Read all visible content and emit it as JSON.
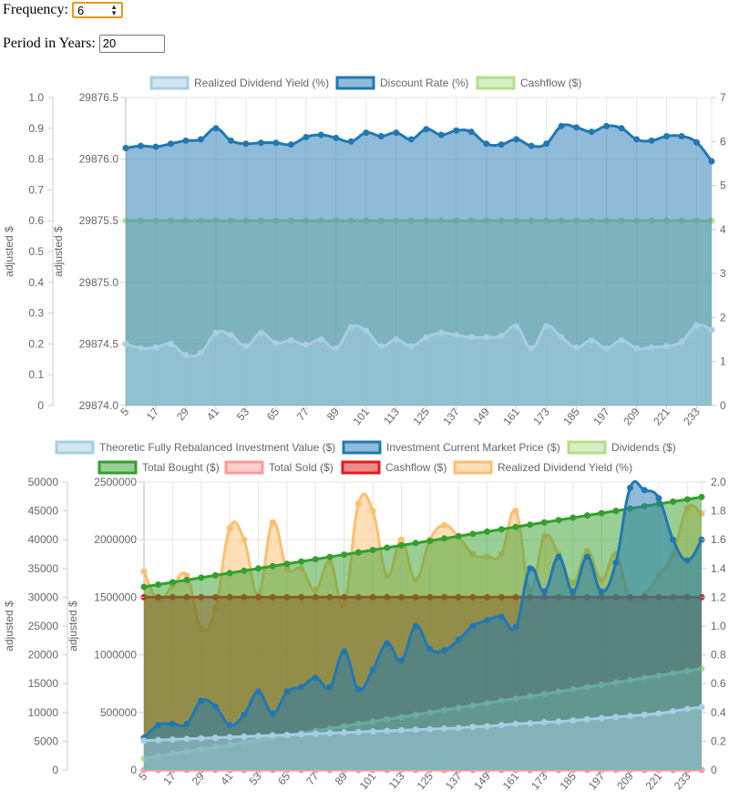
{
  "form": {
    "frequency_label": "Frequency:",
    "frequency_value": "6",
    "period_label": "Period in Years:",
    "period_value": "20"
  },
  "colors": {
    "light_blue": "#a6cee3",
    "dark_blue": "#1f78b4",
    "light_green": "#b2df8a",
    "green": "#33a02c",
    "pink": "#fb9a99",
    "red": "#e31a1c",
    "orange": "#fdbf6f"
  },
  "chart_data": [
    {
      "type": "line",
      "x": [
        5,
        11,
        17,
        23,
        29,
        35,
        41,
        47,
        53,
        59,
        65,
        71,
        77,
        83,
        89,
        95,
        101,
        107,
        113,
        119,
        125,
        131,
        137,
        143,
        149,
        155,
        161,
        167,
        173,
        179,
        185,
        191,
        197,
        203,
        209,
        215,
        221,
        227,
        233,
        239
      ],
      "tick_labels": [
        "5",
        "17",
        "29",
        "41",
        "53",
        "65",
        "77",
        "89",
        "101",
        "113",
        "125",
        "137",
        "149",
        "161",
        "173",
        "185",
        "197",
        "209",
        "221",
        "233"
      ],
      "legend": [
        "Realized Dividend Yield (%)",
        "Discount Rate (%)",
        "Cashflow ($)"
      ],
      "axes": {
        "y_outer": {
          "label": "adjusted $",
          "ticks": [
            "0",
            "0.1",
            "0.2",
            "0.3",
            "0.4",
            "0.5",
            "0.6",
            "0.7",
            "0.8",
            "0.9",
            "1.0"
          ],
          "min": 0,
          "max": 1
        },
        "y_left": {
          "label": "adjusted $",
          "ticks": [
            "29874.0",
            "29874.5",
            "29875.0",
            "29875.5",
            "29876.0",
            "29876.5"
          ],
          "min": 29874.0,
          "max": 29876.5
        },
        "y_right": {
          "ticks": [
            "0",
            "1",
            "2",
            "3",
            "4",
            "5",
            "6",
            "7"
          ],
          "min": 0,
          "max": 7
        }
      },
      "series": [
        {
          "name": "Realized Dividend Yield (%)",
          "axis": "y_right",
          "color": "light_blue",
          "values": [
            1.4,
            1.3,
            1.32,
            1.4,
            1.15,
            1.2,
            1.65,
            1.6,
            1.35,
            1.65,
            1.42,
            1.48,
            1.38,
            1.5,
            1.3,
            1.78,
            1.7,
            1.35,
            1.5,
            1.35,
            1.55,
            1.65,
            1.6,
            1.55,
            1.55,
            1.58,
            1.8,
            1.3,
            1.8,
            1.55,
            1.32,
            1.48,
            1.3,
            1.48,
            1.3,
            1.32,
            1.35,
            1.45,
            1.82,
            1.72
          ]
        },
        {
          "name": "Discount Rate (%)",
          "axis": "y_right",
          "color": "dark_blue",
          "values": [
            5.85,
            5.9,
            5.88,
            5.95,
            6.02,
            6.05,
            6.3,
            6.02,
            5.95,
            5.97,
            5.97,
            5.93,
            6.1,
            6.15,
            6.08,
            6.0,
            6.2,
            6.12,
            6.2,
            6.05,
            6.28,
            6.15,
            6.25,
            6.22,
            5.95,
            5.93,
            6.05,
            5.9,
            5.95,
            6.35,
            6.32,
            6.22,
            6.35,
            6.3,
            6.05,
            6.02,
            6.12,
            6.12,
            5.98,
            5.55
          ]
        },
        {
          "name": "Cashflow ($)",
          "axis": "y_left",
          "color": "light_green",
          "values": [
            29875.5,
            29875.5,
            29875.5,
            29875.5,
            29875.5,
            29875.5,
            29875.5,
            29875.5,
            29875.5,
            29875.5,
            29875.5,
            29875.5,
            29875.5,
            29875.5,
            29875.5,
            29875.5,
            29875.5,
            29875.5,
            29875.5,
            29875.5,
            29875.5,
            29875.5,
            29875.5,
            29875.5,
            29875.5,
            29875.5,
            29875.5,
            29875.5,
            29875.5,
            29875.5,
            29875.5,
            29875.5,
            29875.5,
            29875.5,
            29875.5,
            29875.5,
            29875.5,
            29875.5,
            29875.5,
            29875.5
          ]
        }
      ]
    },
    {
      "type": "line",
      "x": [
        5,
        11,
        17,
        23,
        29,
        35,
        41,
        47,
        53,
        59,
        65,
        71,
        77,
        83,
        89,
        95,
        101,
        107,
        113,
        119,
        125,
        131,
        137,
        143,
        149,
        155,
        161,
        167,
        173,
        179,
        185,
        191,
        197,
        203,
        209,
        215,
        221,
        227,
        233,
        239
      ],
      "tick_labels": [
        "5",
        "17",
        "29",
        "41",
        "53",
        "65",
        "77",
        "89",
        "101",
        "113",
        "125",
        "137",
        "149",
        "161",
        "173",
        "185",
        "197",
        "209",
        "221",
        "233"
      ],
      "legend": [
        "Theoretic Fully Rebalanced Investment Value ($)",
        "Investment Current Market Price ($)",
        "Dividends ($)",
        "Total Bought ($)",
        "Total Sold ($)",
        "Cashflow ($)",
        "Realized Dividend Yield (%)"
      ],
      "axes": {
        "y_outer": {
          "label": "adjusted $",
          "ticks": [
            "0",
            "5000",
            "10000",
            "15000",
            "20000",
            "25000",
            "30000",
            "35000",
            "40000",
            "45000",
            "50000"
          ],
          "min": 0,
          "max": 50000
        },
        "y_left": {
          "label": "adjusted $",
          "ticks": [
            "0",
            "500000",
            "1000000",
            "1500000",
            "2000000",
            "2500000"
          ],
          "min": 0,
          "max": 2500000
        },
        "y_right": {
          "ticks": [
            "0",
            "0.2",
            "0.4",
            "0.6",
            "0.8",
            "1.0",
            "1.2",
            "1.4",
            "1.6",
            "1.8",
            "2.0"
          ],
          "min": 0,
          "max": 2
        }
      },
      "series": [
        {
          "name": "Theoretic Fully Rebalanced Investment Value ($)",
          "axis": "y_left",
          "color": "light_blue",
          "values": [
            255000,
            260000,
            265000,
            270000,
            275000,
            280000,
            285000,
            290000,
            295000,
            300000,
            305000,
            310000,
            315000,
            320000,
            325000,
            330000,
            335000,
            340000,
            345000,
            350000,
            355000,
            360000,
            365000,
            375000,
            380000,
            390000,
            400000,
            405000,
            415000,
            420000,
            430000,
            440000,
            450000,
            460000,
            470000,
            480000,
            490000,
            510000,
            530000,
            545000
          ]
        },
        {
          "name": "Investment Current Market Price ($)",
          "axis": "y_left",
          "color": "dark_blue",
          "values": [
            280000,
            390000,
            400000,
            400000,
            600000,
            550000,
            390000,
            480000,
            680000,
            490000,
            680000,
            720000,
            800000,
            720000,
            1030000,
            700000,
            870000,
            1100000,
            950000,
            1250000,
            1050000,
            1040000,
            1130000,
            1250000,
            1300000,
            1330000,
            1240000,
            1750000,
            1550000,
            1850000,
            1550000,
            1850000,
            1550000,
            1800000,
            2450000,
            2430000,
            2360000,
            2000000,
            1820000,
            2000000
          ]
        },
        {
          "name": "Dividends ($)",
          "axis": "y_left",
          "color": "light_green",
          "values": [
            100000,
            120000,
            140000,
            160000,
            180000,
            200000,
            220000,
            240000,
            260000,
            280000,
            300000,
            320000,
            340000,
            360000,
            380000,
            400000,
            420000,
            440000,
            460000,
            480000,
            500000,
            520000,
            540000,
            560000,
            580000,
            600000,
            620000,
            640000,
            660000,
            680000,
            700000,
            720000,
            740000,
            760000,
            780000,
            800000,
            820000,
            840000,
            860000,
            880000
          ]
        },
        {
          "name": "Total Bought ($)",
          "axis": "y_left",
          "color": "green",
          "values": [
            1590000,
            1610000,
            1630000,
            1650000,
            1670000,
            1690000,
            1710000,
            1730000,
            1750000,
            1770000,
            1790000,
            1810000,
            1830000,
            1850000,
            1870000,
            1890000,
            1910000,
            1930000,
            1950000,
            1970000,
            1990000,
            2010000,
            2030000,
            2050000,
            2070000,
            2090000,
            2110000,
            2130000,
            2150000,
            2170000,
            2190000,
            2210000,
            2230000,
            2250000,
            2270000,
            2290000,
            2310000,
            2330000,
            2350000,
            2370000
          ]
        },
        {
          "name": "Total Sold ($)",
          "axis": "y_left",
          "color": "pink",
          "values": [
            0,
            0,
            0,
            0,
            0,
            0,
            0,
            0,
            0,
            0,
            0,
            0,
            0,
            0,
            0,
            0,
            0,
            0,
            0,
            0,
            0,
            0,
            0,
            0,
            0,
            0,
            0,
            0,
            0,
            0,
            0,
            0,
            0,
            0,
            0,
            0,
            0,
            0,
            0,
            0
          ]
        },
        {
          "name": "Cashflow ($)",
          "axis": "y_left",
          "color": "red",
          "values": [
            1500000,
            1500000,
            1500000,
            1500000,
            1500000,
            1500000,
            1500000,
            1500000,
            1500000,
            1500000,
            1500000,
            1500000,
            1500000,
            1500000,
            1500000,
            1500000,
            1500000,
            1500000,
            1500000,
            1500000,
            1500000,
            1500000,
            1500000,
            1500000,
            1500000,
            1500000,
            1500000,
            1500000,
            1500000,
            1500000,
            1500000,
            1500000,
            1500000,
            1500000,
            1500000,
            1500000,
            1500000,
            1500000,
            1500000,
            1500000
          ]
        },
        {
          "name": "Realized Dividend Yield (%)",
          "axis": "y_right",
          "color": "orange",
          "values": [
            1.38,
            1.18,
            1.28,
            1.35,
            0.98,
            1.12,
            1.68,
            1.6,
            1.22,
            1.72,
            1.4,
            1.4,
            1.25,
            1.45,
            1.15,
            1.85,
            1.8,
            1.35,
            1.6,
            1.32,
            1.6,
            1.7,
            1.62,
            1.5,
            1.48,
            1.5,
            1.8,
            1.25,
            1.62,
            1.5,
            1.3,
            1.52,
            1.32,
            1.5,
            1.18,
            1.22,
            1.35,
            1.5,
            1.82,
            1.78
          ]
        }
      ]
    }
  ]
}
